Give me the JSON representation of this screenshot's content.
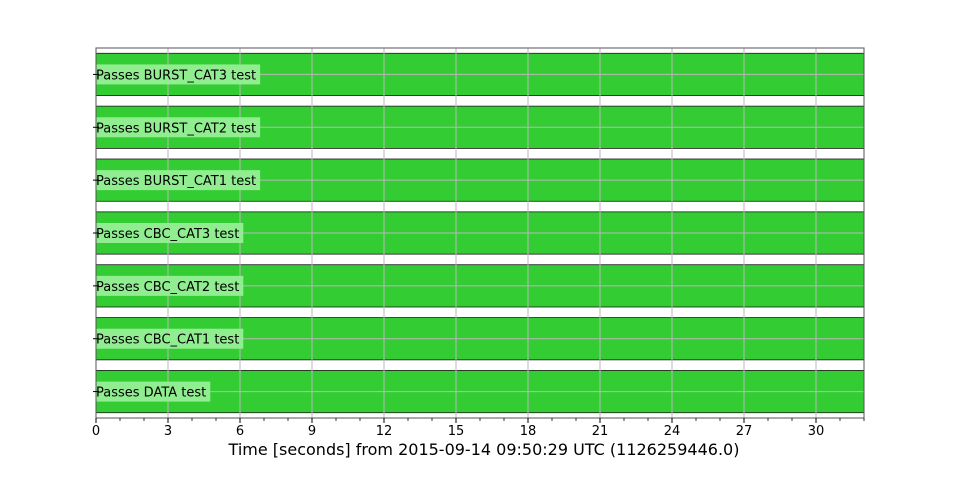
{
  "chart_data": {
    "type": "segment-timeline",
    "xlabel": "Time [seconds] from 2015-09-14 09:50:29 UTC (1126259446.0)",
    "xlim": [
      0,
      32
    ],
    "xticks": [
      0,
      3,
      6,
      9,
      12,
      15,
      18,
      21,
      24,
      27,
      30
    ],
    "grid": true,
    "active_color": "#33cc33",
    "label_bg_color": "#90ee90",
    "rows": [
      {
        "label": "Passes BURST_CAT3 test",
        "segments": [
          [
            0,
            32
          ]
        ]
      },
      {
        "label": "Passes BURST_CAT2 test",
        "segments": [
          [
            0,
            32
          ]
        ]
      },
      {
        "label": "Passes BURST_CAT1 test",
        "segments": [
          [
            0,
            32
          ]
        ]
      },
      {
        "label": "Passes CBC_CAT3 test",
        "segments": [
          [
            0,
            32
          ]
        ]
      },
      {
        "label": "Passes CBC_CAT2 test",
        "segments": [
          [
            0,
            32
          ]
        ]
      },
      {
        "label": "Passes CBC_CAT1 test",
        "segments": [
          [
            0,
            32
          ]
        ]
      },
      {
        "label": "Passes DATA test",
        "segments": [
          [
            0,
            32
          ]
        ]
      }
    ]
  }
}
